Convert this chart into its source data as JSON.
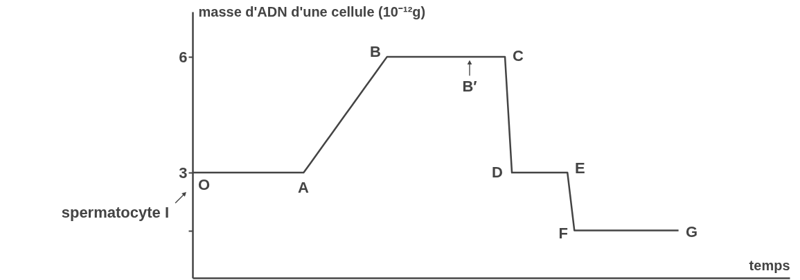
{
  "chart_data": {
    "type": "line",
    "ylabel": "masse d'ADN d'une cellule (10⁻¹²g)",
    "xlabel": "temps",
    "categories": [
      null,
      null,
      null,
      null,
      null,
      null,
      null,
      null,
      null,
      null,
      null,
      null,
      null,
      null,
      null,
      null,
      null,
      null,
      null,
      null,
      null,
      null,
      null,
      null,
      null,
      null,
      null,
      null,
      null,
      null,
      null,
      null,
      null,
      null,
      null,
      null,
      null,
      null,
      null,
      null,
      null,
      null,
      null,
      null,
      null,
      null,
      null,
      null,
      null,
      null,
      null,
      null,
      null,
      null,
      null,
      null,
      null,
      null,
      null,
      null,
      null,
      null,
      null,
      null,
      null,
      null,
      null,
      null,
      null,
      null,
      null,
      null,
      null,
      null,
      null,
      null,
      null,
      null,
      null,
      null,
      null,
      null,
      null,
      null,
      null,
      null,
      null
    ],
    "series": [
      {
        "color": "#444444",
        "values": [
          3,
          3,
          3,
          3,
          3,
          3,
          3,
          3,
          3,
          3,
          3,
          3,
          3,
          3,
          3,
          3,
          3,
          3.25,
          3.5,
          3.75,
          4,
          4.25,
          4.5,
          4.75,
          5,
          5.25,
          5.5,
          5.75,
          6,
          6,
          6,
          6,
          6,
          6,
          6,
          6,
          6,
          6,
          6,
          6,
          6,
          6,
          6,
          6,
          6,
          6,
          3,
          3,
          3,
          3,
          3,
          3,
          3,
          3,
          3,
          1.5,
          1.5,
          1.5,
          1.5,
          1.5,
          1.5,
          1.5,
          1.5,
          1.5,
          1.5,
          1.5,
          1.5,
          1.5,
          1.5,
          1.5,
          1.5,
          null,
          null,
          null,
          null,
          null,
          null,
          null,
          null,
          null,
          null,
          null,
          null,
          null,
          null,
          null,
          null
        ]
      }
    ],
    "ylim": [
      0.27,
      7.17
    ],
    "yticks": [
      {
        "value": 1.5,
        "label": null
      },
      3,
      6
    ],
    "tick_labels": "y",
    "grid": false,
    "marker": "none",
    "line_style": "solid",
    "annotations": [
      "O",
      "A",
      "B",
      "C",
      "D",
      "E",
      "F",
      "G",
      "B′",
      "spermatocyte I"
    ]
  }
}
